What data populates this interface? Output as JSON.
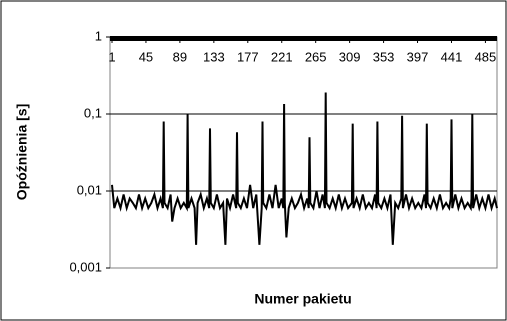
{
  "chart_data": {
    "type": "line",
    "y_label": "Opóźnienia [s]",
    "x_label": "Numer pakietu",
    "color": "#000000",
    "ylog": true,
    "grid": true,
    "xlim": [
      1,
      500
    ],
    "xticks": [
      1,
      45,
      89,
      133,
      177,
      221,
      265,
      309,
      353,
      397,
      441,
      485
    ],
    "ylim": [
      0.001,
      1
    ],
    "yticks": [
      {
        "value": 0.001,
        "label": "0,001"
      },
      {
        "value": 0.01,
        "label": "0,01"
      },
      {
        "value": 0.1,
        "label": "0,1"
      },
      1
    ],
    "x": [
      1,
      4,
      8,
      12,
      16,
      20,
      24,
      28,
      32,
      36,
      40,
      44,
      48,
      52,
      56,
      60,
      64,
      67,
      68,
      69,
      73,
      77,
      79,
      82,
      86,
      90,
      94,
      98,
      99,
      100,
      104,
      108,
      110,
      112,
      116,
      120,
      124,
      127,
      128,
      129,
      133,
      137,
      141,
      145,
      148,
      150,
      154,
      158,
      162,
      163,
      164,
      168,
      172,
      176,
      180,
      184,
      188,
      192,
      195,
      196,
      197,
      201,
      205,
      209,
      213,
      217,
      221,
      223,
      224,
      225,
      227,
      230,
      234,
      238,
      242,
      246,
      250,
      254,
      256,
      257,
      258,
      262,
      266,
      270,
      274,
      277,
      278,
      279,
      283,
      287,
      291,
      295,
      299,
      303,
      307,
      312,
      313,
      314,
      318,
      322,
      326,
      330,
      334,
      338,
      342,
      344,
      345,
      346,
      350,
      354,
      358,
      362,
      365,
      368,
      372,
      376,
      377,
      378,
      382,
      386,
      390,
      394,
      398,
      402,
      406,
      408,
      409,
      410,
      414,
      418,
      422,
      426,
      430,
      434,
      438,
      440,
      441,
      442,
      446,
      450,
      454,
      458,
      462,
      466,
      467,
      468,
      469,
      473,
      477,
      481,
      485,
      489,
      493,
      497,
      500
    ],
    "values": [
      0.012,
      0.006,
      0.008,
      0.006,
      0.009,
      0.006,
      0.008,
      0.007,
      0.006,
      0.009,
      0.006,
      0.008,
      0.006,
      0.007,
      0.009,
      0.006,
      0.008,
      0.006,
      0.08,
      0.007,
      0.006,
      0.009,
      0.004,
      0.006,
      0.008,
      0.006,
      0.007,
      0.006,
      0.1,
      0.006,
      0.008,
      0.006,
      0.002,
      0.007,
      0.009,
      0.006,
      0.008,
      0.006,
      0.065,
      0.007,
      0.006,
      0.009,
      0.006,
      0.007,
      0.002,
      0.008,
      0.006,
      0.009,
      0.006,
      0.058,
      0.007,
      0.006,
      0.008,
      0.006,
      0.012,
      0.006,
      0.009,
      0.002,
      0.006,
      0.08,
      0.007,
      0.006,
      0.009,
      0.006,
      0.012,
      0.006,
      0.008,
      0.006,
      0.135,
      0.007,
      0.0025,
      0.006,
      0.008,
      0.006,
      0.007,
      0.009,
      0.006,
      0.008,
      0.006,
      0.05,
      0.007,
      0.006,
      0.01,
      0.006,
      0.009,
      0.006,
      0.19,
      0.007,
      0.006,
      0.008,
      0.006,
      0.009,
      0.006,
      0.008,
      0.006,
      0.007,
      0.075,
      0.006,
      0.008,
      0.006,
      0.009,
      0.006,
      0.007,
      0.006,
      0.009,
      0.006,
      0.08,
      0.007,
      0.006,
      0.008,
      0.006,
      0.009,
      0.002,
      0.007,
      0.006,
      0.008,
      0.095,
      0.006,
      0.009,
      0.006,
      0.008,
      0.006,
      0.007,
      0.006,
      0.009,
      0.006,
      0.075,
      0.007,
      0.006,
      0.008,
      0.006,
      0.009,
      0.006,
      0.007,
      0.006,
      0.008,
      0.085,
      0.006,
      0.009,
      0.006,
      0.008,
      0.006,
      0.007,
      0.006,
      0.008,
      0.1,
      0.006,
      0.009,
      0.006,
      0.008,
      0.006,
      0.009,
      0.006,
      0.008,
      0.006
    ]
  }
}
